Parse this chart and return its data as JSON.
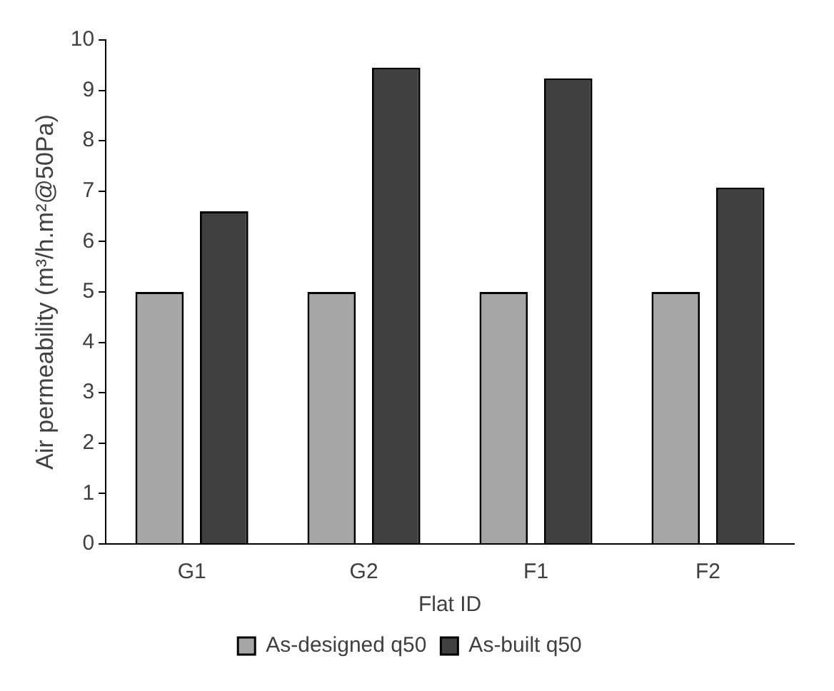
{
  "chart_data": {
    "type": "bar",
    "xlabel": "Flat ID",
    "ylabel": "Air permeability (m³/h.m²@50Pa)",
    "categories": [
      "G1",
      "G2",
      "F1",
      "F2"
    ],
    "series": [
      {
        "name": "As-designed q50",
        "color": "#a6a6a6",
        "values": [
          5,
          5,
          5,
          5
        ]
      },
      {
        "name": "As-built q50",
        "color": "#404040",
        "values": [
          6.6,
          9.45,
          9.24,
          7.07
        ]
      }
    ],
    "ylim": [
      0,
      10
    ],
    "yticks": [
      0,
      1,
      2,
      3,
      4,
      5,
      6,
      7,
      8,
      9,
      10
    ],
    "grid": false,
    "legend": "bottom"
  }
}
